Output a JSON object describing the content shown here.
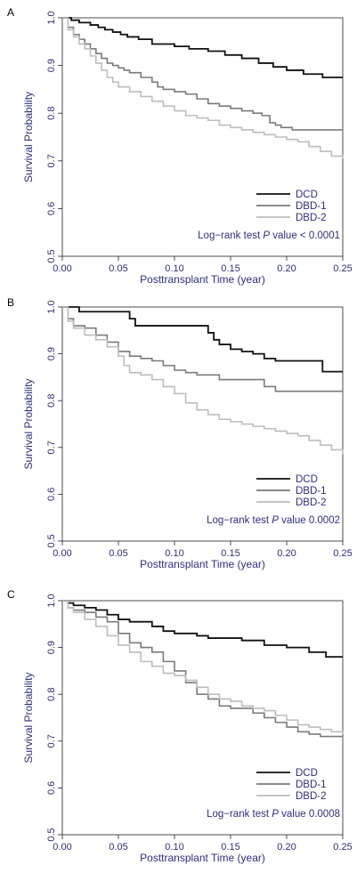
{
  "colors": {
    "axis_text": "#2e2e7a",
    "DCD": "#111111",
    "DBD-1": "#7a7a7a",
    "DBD-2": "#bdbdbd"
  },
  "chart_data": [
    {
      "type": "line",
      "panel_label": "A",
      "xlabel": "Posttransplant Time (year)",
      "ylabel": "Survival Probability",
      "xlim": [
        0,
        0.25
      ],
      "ylim": [
        0.5,
        1.0
      ],
      "xticks": [
        "0.00",
        "0.05",
        "0.10",
        "0.15",
        "0.20",
        "0.25"
      ],
      "yticks": [
        "0.5",
        "0.6",
        "0.7",
        "0.8",
        "0.9",
        "1.0"
      ],
      "legend_position": "bottom-right",
      "annotation": {
        "prefix": "Log−rank test ",
        "italic": "P",
        "suffix": " value  < 0.0001"
      },
      "series": [
        {
          "name": "DCD",
          "x": [
            0,
            0.008,
            0.015,
            0.025,
            0.032,
            0.038,
            0.045,
            0.052,
            0.058,
            0.068,
            0.08,
            0.1,
            0.113,
            0.13,
            0.145,
            0.16,
            0.175,
            0.188,
            0.2,
            0.215,
            0.232,
            0.25
          ],
          "y": [
            1.0,
            0.995,
            0.99,
            0.985,
            0.98,
            0.975,
            0.97,
            0.965,
            0.96,
            0.955,
            0.945,
            0.94,
            0.935,
            0.93,
            0.922,
            0.915,
            0.905,
            0.897,
            0.89,
            0.882,
            0.875,
            0.875
          ]
        },
        {
          "name": "DBD-1",
          "x": [
            0,
            0.005,
            0.01,
            0.015,
            0.02,
            0.025,
            0.03,
            0.035,
            0.04,
            0.045,
            0.05,
            0.055,
            0.06,
            0.07,
            0.08,
            0.085,
            0.09,
            0.1,
            0.11,
            0.12,
            0.13,
            0.14,
            0.15,
            0.16,
            0.17,
            0.178,
            0.185,
            0.19,
            0.195,
            0.2,
            0.205,
            0.212,
            0.22,
            0.25
          ],
          "y": [
            1.0,
            0.98,
            0.965,
            0.955,
            0.945,
            0.935,
            0.925,
            0.915,
            0.905,
            0.9,
            0.895,
            0.89,
            0.885,
            0.875,
            0.865,
            0.855,
            0.85,
            0.845,
            0.84,
            0.83,
            0.82,
            0.815,
            0.81,
            0.805,
            0.8,
            0.795,
            0.78,
            0.775,
            0.77,
            0.77,
            0.765,
            0.765,
            0.765,
            0.765
          ]
        },
        {
          "name": "DBD-2",
          "x": [
            0,
            0.005,
            0.01,
            0.015,
            0.02,
            0.025,
            0.03,
            0.035,
            0.04,
            0.045,
            0.05,
            0.06,
            0.07,
            0.08,
            0.09,
            0.1,
            0.11,
            0.12,
            0.13,
            0.14,
            0.15,
            0.16,
            0.17,
            0.18,
            0.19,
            0.2,
            0.21,
            0.22,
            0.23,
            0.24,
            0.25
          ],
          "y": [
            1.0,
            0.975,
            0.96,
            0.945,
            0.935,
            0.92,
            0.905,
            0.89,
            0.875,
            0.865,
            0.855,
            0.845,
            0.835,
            0.825,
            0.815,
            0.805,
            0.795,
            0.79,
            0.785,
            0.775,
            0.77,
            0.765,
            0.76,
            0.755,
            0.75,
            0.745,
            0.74,
            0.73,
            0.72,
            0.71,
            0.705
          ]
        }
      ]
    },
    {
      "type": "line",
      "panel_label": "B",
      "xlabel": "Posttransplant Time (year)",
      "ylabel": "Survival Probability",
      "xlim": [
        0,
        0.25
      ],
      "ylim": [
        0.5,
        1.0
      ],
      "xticks": [
        "0.00",
        "0.05",
        "0.10",
        "0.15",
        "0.20",
        "0.25"
      ],
      "yticks": [
        "0.5",
        "0.6",
        "0.7",
        "0.8",
        "0.9",
        "1.0"
      ],
      "legend_position": "bottom-right",
      "annotation": {
        "prefix": "Log−rank test ",
        "italic": "P",
        "suffix": " value  0.0002"
      },
      "series": [
        {
          "name": "DCD",
          "x": [
            0,
            0.015,
            0.05,
            0.06,
            0.065,
            0.1,
            0.12,
            0.13,
            0.135,
            0.14,
            0.15,
            0.16,
            0.17,
            0.18,
            0.19,
            0.2,
            0.232,
            0.25
          ],
          "y": [
            1.0,
            0.99,
            0.99,
            0.975,
            0.96,
            0.96,
            0.96,
            0.945,
            0.93,
            0.92,
            0.91,
            0.905,
            0.9,
            0.89,
            0.885,
            0.885,
            0.862,
            0.862
          ]
        },
        {
          "name": "DBD-1",
          "x": [
            0,
            0.005,
            0.01,
            0.02,
            0.03,
            0.04,
            0.05,
            0.06,
            0.07,
            0.08,
            0.09,
            0.1,
            0.11,
            0.12,
            0.14,
            0.16,
            0.18,
            0.19,
            0.25
          ],
          "y": [
            1.0,
            0.975,
            0.96,
            0.955,
            0.94,
            0.925,
            0.905,
            0.895,
            0.89,
            0.885,
            0.875,
            0.865,
            0.86,
            0.855,
            0.845,
            0.845,
            0.83,
            0.82,
            0.82
          ]
        },
        {
          "name": "DBD-2",
          "x": [
            0,
            0.005,
            0.01,
            0.02,
            0.03,
            0.04,
            0.05,
            0.055,
            0.06,
            0.07,
            0.08,
            0.09,
            0.1,
            0.11,
            0.12,
            0.13,
            0.14,
            0.15,
            0.16,
            0.17,
            0.18,
            0.19,
            0.2,
            0.21,
            0.22,
            0.23,
            0.24,
            0.25
          ],
          "y": [
            1.0,
            0.97,
            0.955,
            0.94,
            0.93,
            0.915,
            0.895,
            0.875,
            0.86,
            0.855,
            0.845,
            0.83,
            0.815,
            0.795,
            0.78,
            0.77,
            0.76,
            0.755,
            0.75,
            0.745,
            0.74,
            0.735,
            0.73,
            0.725,
            0.715,
            0.705,
            0.695,
            0.685
          ]
        }
      ]
    },
    {
      "type": "line",
      "panel_label": "C",
      "xlabel": "Posttransplant Time (year)",
      "ylabel": "Survival Probability",
      "xlim": [
        0,
        0.25
      ],
      "ylim": [
        0.5,
        1.0
      ],
      "xticks": [
        "0.00",
        "0.05",
        "0.10",
        "0.15",
        "0.20",
        "0.25"
      ],
      "yticks": [
        "0.5",
        "0.6",
        "0.7",
        "0.8",
        "0.9",
        "1.0"
      ],
      "legend_position": "bottom-right",
      "annotation": {
        "prefix": "Log−rank test ",
        "italic": "P",
        "suffix": " value  0.0008"
      },
      "series": [
        {
          "name": "DCD",
          "x": [
            0,
            0.005,
            0.01,
            0.02,
            0.03,
            0.04,
            0.05,
            0.06,
            0.07,
            0.08,
            0.09,
            0.1,
            0.12,
            0.13,
            0.16,
            0.18,
            0.2,
            0.22,
            0.235,
            0.25
          ],
          "y": [
            1.0,
            0.995,
            0.99,
            0.985,
            0.98,
            0.97,
            0.96,
            0.955,
            0.955,
            0.945,
            0.935,
            0.93,
            0.925,
            0.92,
            0.915,
            0.905,
            0.9,
            0.89,
            0.88,
            0.88
          ]
        },
        {
          "name": "DBD-1",
          "x": [
            0,
            0.005,
            0.01,
            0.02,
            0.03,
            0.04,
            0.05,
            0.06,
            0.07,
            0.08,
            0.09,
            0.1,
            0.11,
            0.12,
            0.13,
            0.14,
            0.15,
            0.16,
            0.17,
            0.18,
            0.19,
            0.2,
            0.21,
            0.22,
            0.23,
            0.25
          ],
          "y": [
            1.0,
            0.985,
            0.98,
            0.975,
            0.965,
            0.955,
            0.93,
            0.91,
            0.9,
            0.89,
            0.87,
            0.85,
            0.825,
            0.8,
            0.79,
            0.775,
            0.77,
            0.77,
            0.76,
            0.75,
            0.74,
            0.73,
            0.72,
            0.715,
            0.71,
            0.71
          ]
        },
        {
          "name": "DBD-2",
          "x": [
            0,
            0.005,
            0.01,
            0.02,
            0.03,
            0.04,
            0.05,
            0.06,
            0.07,
            0.08,
            0.09,
            0.1,
            0.11,
            0.12,
            0.13,
            0.14,
            0.15,
            0.16,
            0.17,
            0.18,
            0.19,
            0.2,
            0.21,
            0.22,
            0.23,
            0.24,
            0.25
          ],
          "y": [
            1.0,
            0.985,
            0.975,
            0.96,
            0.945,
            0.925,
            0.905,
            0.89,
            0.87,
            0.86,
            0.845,
            0.84,
            0.83,
            0.815,
            0.8,
            0.79,
            0.785,
            0.775,
            0.77,
            0.765,
            0.755,
            0.745,
            0.735,
            0.73,
            0.725,
            0.72,
            0.715
          ]
        }
      ]
    }
  ]
}
